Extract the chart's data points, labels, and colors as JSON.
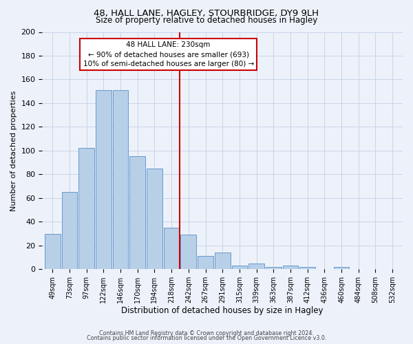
{
  "title": "48, HALL LANE, HAGLEY, STOURBRIDGE, DY9 9LH",
  "subtitle": "Size of property relative to detached houses in Hagley",
  "xlabel": "Distribution of detached houses by size in Hagley",
  "ylabel": "Number of detached properties",
  "bar_labels": [
    "49sqm",
    "73sqm",
    "97sqm",
    "122sqm",
    "146sqm",
    "170sqm",
    "194sqm",
    "218sqm",
    "242sqm",
    "267sqm",
    "291sqm",
    "315sqm",
    "339sqm",
    "363sqm",
    "387sqm",
    "412sqm",
    "436sqm",
    "460sqm",
    "484sqm",
    "508sqm",
    "532sqm"
  ],
  "bar_values": [
    30,
    65,
    102,
    151,
    151,
    95,
    85,
    35,
    29,
    11,
    14,
    3,
    5,
    2,
    3,
    2,
    0,
    2,
    0,
    0,
    0
  ],
  "bar_color": "#b8cfe8",
  "bar_edge_color": "#6699cc",
  "ylim": [
    0,
    200
  ],
  "yticks": [
    0,
    20,
    40,
    60,
    80,
    100,
    120,
    140,
    160,
    180,
    200
  ],
  "vline_color": "#cc0000",
  "annotation_title": "48 HALL LANE: 230sqm",
  "annotation_line1": "← 90% of detached houses are smaller (693)",
  "annotation_line2": "10% of semi-detached houses are larger (80) →",
  "annotation_box_color": "#cc0000",
  "footer_line1": "Contains HM Land Registry data © Crown copyright and database right 2024.",
  "footer_line2": "Contains public sector information licensed under the Open Government Licence v3.0.",
  "bg_color": "#edf2fa",
  "grid_color": "#c8d4e8"
}
